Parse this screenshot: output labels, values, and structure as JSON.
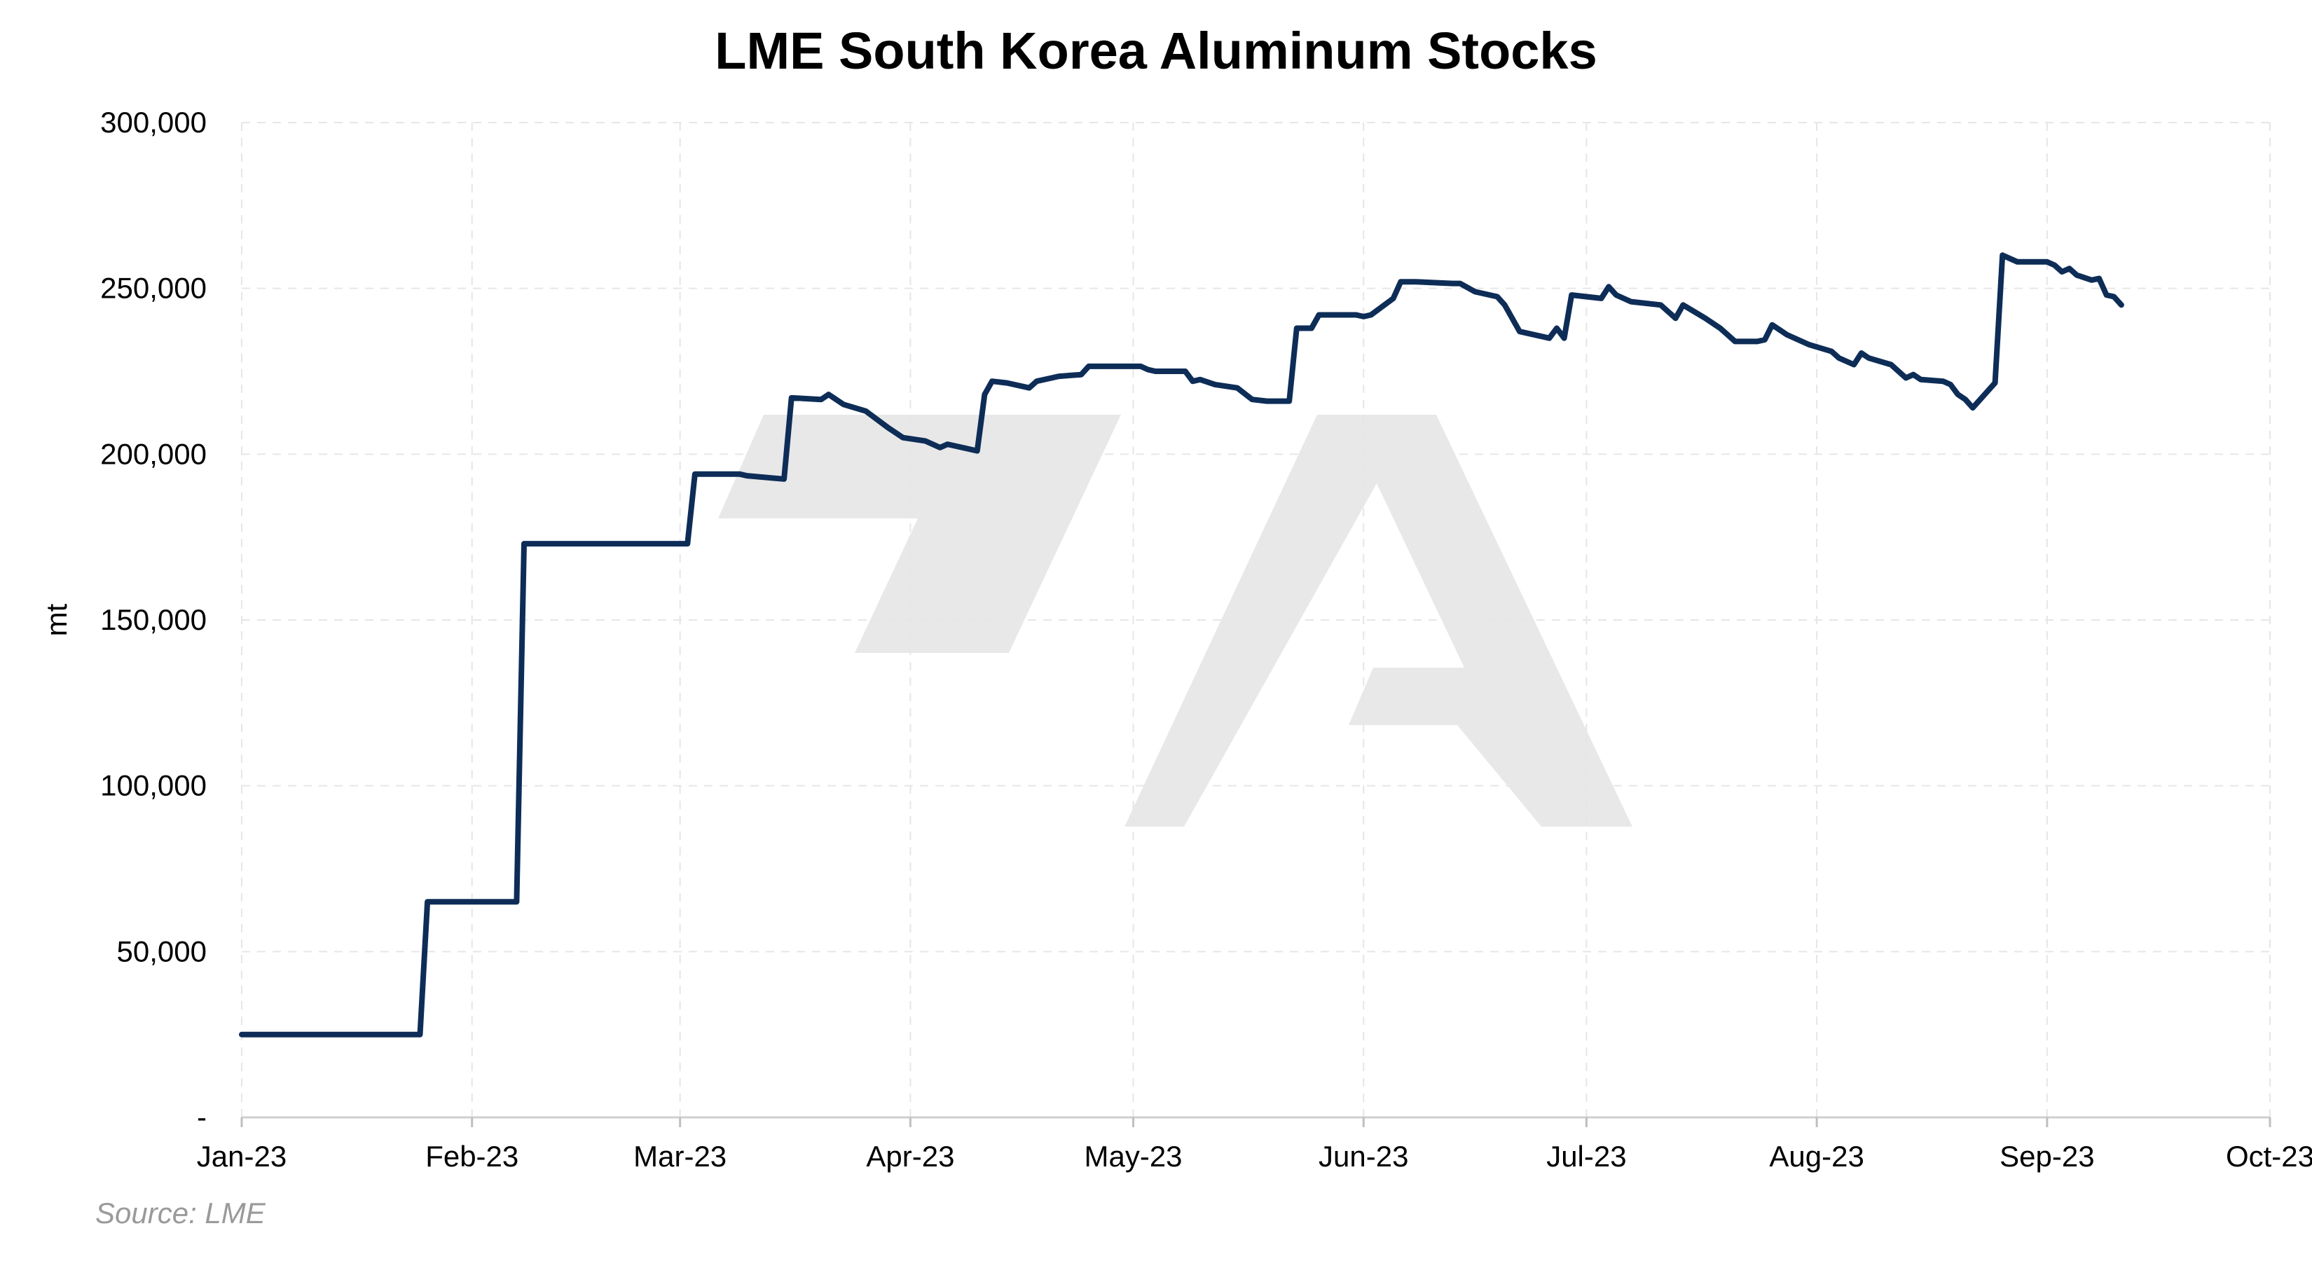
{
  "chart_data": {
    "type": "line",
    "title": "LME South Korea Aluminum Stocks",
    "xlabel": "",
    "ylabel": "mt",
    "source": "Source: LME",
    "ylim": [
      0,
      300000
    ],
    "xlim": [
      "2023-01-01",
      "2023-10-01"
    ],
    "y_ticks": [
      {
        "value": 0,
        "label": "-"
      },
      {
        "value": 50000,
        "label": "50,000"
      },
      {
        "value": 100000,
        "label": "100,000"
      },
      {
        "value": 150000,
        "label": "150,000"
      },
      {
        "value": 200000,
        "label": "200,000"
      },
      {
        "value": 250000,
        "label": "250,000"
      },
      {
        "value": 300000,
        "label": "300,000"
      }
    ],
    "x_ticks": [
      {
        "date": "2023-01-01",
        "label": "Jan-23"
      },
      {
        "date": "2023-02-01",
        "label": "Feb-23"
      },
      {
        "date": "2023-03-01",
        "label": "Mar-23"
      },
      {
        "date": "2023-04-01",
        "label": "Apr-23"
      },
      {
        "date": "2023-05-01",
        "label": "May-23"
      },
      {
        "date": "2023-06-01",
        "label": "Jun-23"
      },
      {
        "date": "2023-07-01",
        "label": "Jul-23"
      },
      {
        "date": "2023-08-01",
        "label": "Aug-23"
      },
      {
        "date": "2023-09-01",
        "label": "Sep-23"
      },
      {
        "date": "2023-10-01",
        "label": "Oct-23"
      }
    ],
    "grid": true,
    "series": [
      {
        "color": "#0d2d57",
        "points": [
          [
            "2023-01-01",
            25000
          ],
          [
            "2023-01-25",
            25000
          ],
          [
            "2023-01-26",
            65000
          ],
          [
            "2023-02-07",
            65000
          ],
          [
            "2023-02-08",
            173000
          ],
          [
            "2023-03-02",
            173000
          ],
          [
            "2023-03-03",
            194000
          ],
          [
            "2023-03-09",
            194000
          ],
          [
            "2023-03-10",
            193500
          ],
          [
            "2023-03-15",
            192500
          ],
          [
            "2023-03-16",
            217000
          ],
          [
            "2023-03-20",
            216500
          ],
          [
            "2023-03-21",
            218000
          ],
          [
            "2023-03-23",
            215000
          ],
          [
            "2023-03-26",
            213000
          ],
          [
            "2023-03-29",
            208000
          ],
          [
            "2023-03-31",
            205000
          ],
          [
            "2023-04-03",
            204000
          ],
          [
            "2023-04-05",
            202000
          ],
          [
            "2023-04-06",
            203000
          ],
          [
            "2023-04-10",
            201000
          ],
          [
            "2023-04-11",
            218000
          ],
          [
            "2023-04-12",
            222000
          ],
          [
            "2023-04-14",
            221500
          ],
          [
            "2023-04-17",
            220000
          ],
          [
            "2023-04-18",
            222000
          ],
          [
            "2023-04-20",
            223000
          ],
          [
            "2023-04-21",
            223500
          ],
          [
            "2023-04-24",
            224000
          ],
          [
            "2023-04-25",
            226500
          ],
          [
            "2023-04-28",
            226500
          ],
          [
            "2023-05-02",
            226500
          ],
          [
            "2023-05-03",
            225500
          ],
          [
            "2023-05-04",
            225000
          ],
          [
            "2023-05-08",
            225000
          ],
          [
            "2023-05-09",
            222000
          ],
          [
            "2023-05-10",
            222500
          ],
          [
            "2023-05-12",
            221000
          ],
          [
            "2023-05-15",
            220000
          ],
          [
            "2023-05-17",
            216500
          ],
          [
            "2023-05-19",
            216000
          ],
          [
            "2023-05-22",
            216000
          ],
          [
            "2023-05-23",
            238000
          ],
          [
            "2023-05-25",
            238000
          ],
          [
            "2023-05-26",
            242000
          ],
          [
            "2023-05-31",
            242000
          ],
          [
            "2023-06-01",
            241500
          ],
          [
            "2023-06-02",
            242000
          ],
          [
            "2023-06-05",
            247000
          ],
          [
            "2023-06-06",
            252000
          ],
          [
            "2023-06-08",
            252000
          ],
          [
            "2023-06-13",
            251500
          ],
          [
            "2023-06-14",
            251500
          ],
          [
            "2023-06-16",
            249000
          ],
          [
            "2023-06-19",
            247500
          ],
          [
            "2023-06-20",
            245000
          ],
          [
            "2023-06-21",
            241000
          ],
          [
            "2023-06-22",
            237000
          ],
          [
            "2023-06-26",
            235000
          ],
          [
            "2023-06-27",
            238000
          ],
          [
            "2023-06-28",
            235000
          ],
          [
            "2023-06-29",
            248000
          ],
          [
            "2023-07-03",
            247000
          ],
          [
            "2023-07-04",
            250500
          ],
          [
            "2023-07-05",
            248000
          ],
          [
            "2023-07-07",
            246000
          ],
          [
            "2023-07-11",
            245000
          ],
          [
            "2023-07-12",
            243000
          ],
          [
            "2023-07-13",
            241000
          ],
          [
            "2023-07-14",
            245000
          ],
          [
            "2023-07-17",
            241000
          ],
          [
            "2023-07-19",
            238000
          ],
          [
            "2023-07-20",
            236000
          ],
          [
            "2023-07-21",
            234000
          ],
          [
            "2023-07-24",
            234000
          ],
          [
            "2023-07-25",
            234500
          ],
          [
            "2023-07-26",
            239000
          ],
          [
            "2023-07-28",
            236000
          ],
          [
            "2023-07-31",
            233000
          ],
          [
            "2023-08-03",
            231000
          ],
          [
            "2023-08-04",
            229000
          ],
          [
            "2023-08-06",
            227000
          ],
          [
            "2023-08-07",
            230500
          ],
          [
            "2023-08-08",
            229000
          ],
          [
            "2023-08-11",
            227000
          ],
          [
            "2023-08-12",
            225000
          ],
          [
            "2023-08-13",
            223000
          ],
          [
            "2023-08-14",
            224000
          ],
          [
            "2023-08-15",
            222500
          ],
          [
            "2023-08-18",
            222000
          ],
          [
            "2023-08-19",
            221000
          ],
          [
            "2023-08-20",
            218000
          ],
          [
            "2023-08-21",
            216500
          ],
          [
            "2023-08-22",
            214000
          ],
          [
            "2023-08-25",
            221500
          ],
          [
            "2023-08-26",
            260000
          ],
          [
            "2023-08-28",
            258000
          ],
          [
            "2023-08-31",
            258000
          ],
          [
            "2023-09-01",
            258000
          ],
          [
            "2023-09-02",
            257000
          ],
          [
            "2023-09-03",
            255000
          ],
          [
            "2023-09-04",
            256000
          ],
          [
            "2023-09-05",
            254000
          ],
          [
            "2023-09-07",
            252500
          ],
          [
            "2023-09-08",
            253000
          ],
          [
            "2023-09-09",
            248000
          ],
          [
            "2023-09-10",
            247500
          ],
          [
            "2023-09-11",
            245000
          ]
        ]
      }
    ]
  }
}
